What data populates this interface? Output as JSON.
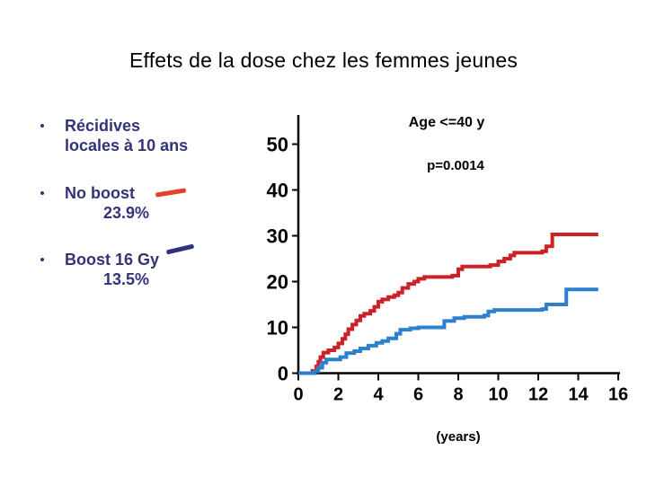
{
  "slide": {
    "title": "Effets de la dose chez les femmes jeunes"
  },
  "bullets": [
    {
      "line1": "Récidives",
      "line2": "locales à 10 ans"
    },
    {
      "label": "No boost",
      "value": "23.9%",
      "swatch_color": "#e04327"
    },
    {
      "label": "Boost 16 Gy",
      "value": "13.5%",
      "swatch_color": "#2f3380"
    }
  ],
  "chart_data": {
    "type": "line",
    "subtype": "step-after-kaplan-meier",
    "title": "Age <=40 y",
    "annotation": "p=0.0014",
    "xlabel": "(years)",
    "ylabel": "",
    "xlim": [
      0,
      16
    ],
    "ylim": [
      0,
      55
    ],
    "x_ticks": [
      0,
      2,
      4,
      6,
      8,
      10,
      12,
      14,
      16
    ],
    "y_ticks": [
      0,
      10,
      20,
      30,
      40,
      50
    ],
    "grid": false,
    "legend_position": "in-left-bullet-list",
    "axis_color": "#000000",
    "series": [
      {
        "name": "No boost",
        "color": "#cc2127",
        "value_at_10_years": "23.9%",
        "points": [
          [
            0,
            0
          ],
          [
            0.7,
            0.5
          ],
          [
            0.9,
            1.5
          ],
          [
            1.0,
            2.5
          ],
          [
            1.1,
            3.5
          ],
          [
            1.25,
            4.5
          ],
          [
            1.5,
            5.0
          ],
          [
            1.8,
            5.6
          ],
          [
            2.0,
            6.5
          ],
          [
            2.2,
            7.5
          ],
          [
            2.35,
            8.5
          ],
          [
            2.5,
            9.6
          ],
          [
            2.7,
            10.6
          ],
          [
            2.9,
            11.5
          ],
          [
            3.1,
            12.5
          ],
          [
            3.3,
            13.0
          ],
          [
            3.6,
            13.6
          ],
          [
            3.8,
            14.5
          ],
          [
            4.0,
            15.6
          ],
          [
            4.2,
            16.1
          ],
          [
            4.5,
            16.6
          ],
          [
            4.8,
            17.0
          ],
          [
            5.0,
            17.6
          ],
          [
            5.2,
            18.6
          ],
          [
            5.5,
            19.5
          ],
          [
            5.8,
            20.0
          ],
          [
            6.0,
            20.6
          ],
          [
            6.3,
            21.0
          ],
          [
            7.7,
            21.3
          ],
          [
            8.0,
            22.7
          ],
          [
            8.2,
            23.3
          ],
          [
            9.6,
            23.6
          ],
          [
            10.0,
            24.4
          ],
          [
            10.3,
            25.0
          ],
          [
            10.6,
            25.7
          ],
          [
            10.8,
            26.3
          ],
          [
            12.2,
            26.6
          ],
          [
            12.4,
            27.7
          ],
          [
            12.7,
            30.3
          ],
          [
            15.0,
            30.3
          ]
        ]
      },
      {
        "name": "Boost 16 Gy",
        "color": "#2c80ce",
        "value_at_10_years": "13.5%",
        "points": [
          [
            0,
            0
          ],
          [
            0.8,
            0.4
          ],
          [
            1.0,
            1.2
          ],
          [
            1.2,
            2.3
          ],
          [
            1.4,
            3.0
          ],
          [
            2.1,
            3.5
          ],
          [
            2.4,
            4.4
          ],
          [
            2.8,
            4.8
          ],
          [
            3.1,
            5.4
          ],
          [
            3.5,
            6.0
          ],
          [
            3.9,
            6.6
          ],
          [
            4.2,
            7.0
          ],
          [
            4.5,
            7.6
          ],
          [
            4.9,
            8.6
          ],
          [
            5.1,
            9.5
          ],
          [
            5.6,
            9.8
          ],
          [
            6.0,
            10.0
          ],
          [
            7.3,
            11.4
          ],
          [
            7.8,
            12.0
          ],
          [
            8.3,
            12.3
          ],
          [
            9.3,
            12.6
          ],
          [
            9.5,
            13.5
          ],
          [
            9.8,
            13.8
          ],
          [
            12.2,
            14.0
          ],
          [
            12.4,
            15.0
          ],
          [
            13.4,
            18.3
          ],
          [
            15.0,
            18.3
          ]
        ]
      }
    ]
  }
}
